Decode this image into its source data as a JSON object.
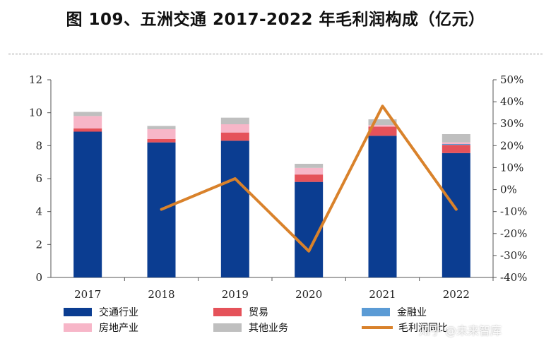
{
  "title": "图 109、五洲交通 2017-2022 年毛利润构成（亿元）",
  "watermark": "知乎 @未来智库",
  "colors": {
    "交通行业": "#0b3d91",
    "贸易": "#e5525a",
    "金融业": "#5b9bd5",
    "房地产业": "#f7b6c8",
    "其他业务": "#bfbfbf",
    "毛利润同比": "#d9822b"
  },
  "chart_data": {
    "type": "bar",
    "stacked": true,
    "categories": [
      "2017",
      "2018",
      "2019",
      "2020",
      "2021",
      "2022"
    ],
    "series": [
      {
        "name": "交通行业",
        "values": [
          8.85,
          8.2,
          8.3,
          5.8,
          8.6,
          7.55
        ]
      },
      {
        "name": "贸易",
        "values": [
          0.2,
          0.2,
          0.5,
          0.45,
          0.55,
          0.5
        ]
      },
      {
        "name": "金融业",
        "values": [
          0.0,
          0.0,
          0.0,
          0.0,
          0.0,
          0.05
        ]
      },
      {
        "name": "房地产业",
        "values": [
          0.75,
          0.6,
          0.5,
          0.4,
          0.1,
          0.1
        ]
      },
      {
        "name": "其他业务",
        "values": [
          0.25,
          0.2,
          0.4,
          0.25,
          0.35,
          0.5
        ]
      }
    ],
    "line_series": {
      "name": "毛利润同比",
      "axis": "right",
      "values": [
        null,
        -9,
        5,
        -28,
        38,
        -9
      ]
    },
    "ylim": [
      0,
      12
    ],
    "yticks": [
      0,
      2,
      4,
      6,
      8,
      10,
      12
    ],
    "y2lim": [
      -40,
      50
    ],
    "y2ticks": [
      -40,
      -30,
      -20,
      -10,
      0,
      10,
      20,
      30,
      40,
      50
    ],
    "y2_tick_suffix": "%",
    "legend_position": "bottom",
    "legend": {
      "row1": [
        "交通行业",
        "贸易",
        "金融业"
      ],
      "row2": [
        "房地产业",
        "其他业务",
        "毛利润同比"
      ]
    }
  }
}
